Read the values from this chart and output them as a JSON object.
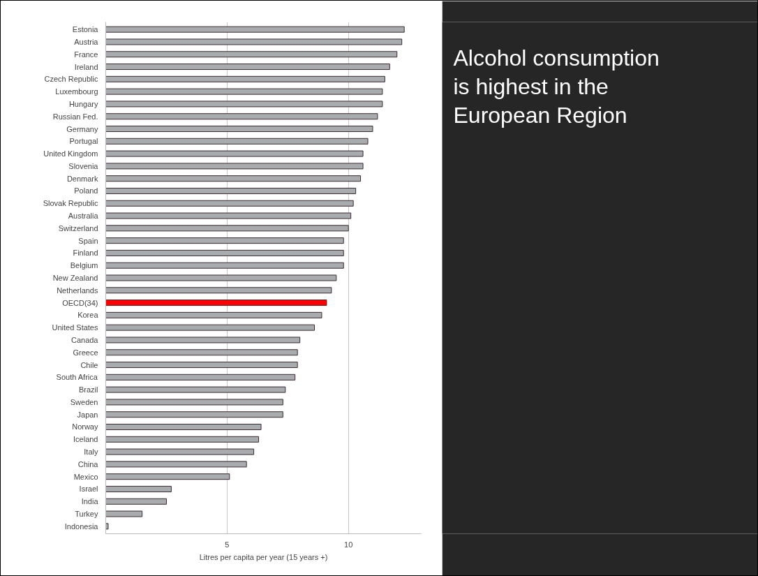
{
  "chart_data": {
    "type": "bar",
    "orientation": "horizontal",
    "title": "Alcohol consumption is highest in the European Region",
    "xlabel": "Litres per capita per year (15 years +)",
    "categories": [
      "Estonia",
      "Austria",
      "France",
      "Ireland",
      "Czech Republic",
      "Luxembourg",
      "Hungary",
      "Russian Fed.",
      "Germany",
      "Portugal",
      "United Kingdom",
      "Slovenia",
      "Denmark",
      "Poland",
      "Slovak Republic",
      "Australia",
      "Switzerland",
      "Spain",
      "Finland",
      "Belgium",
      "New Zealand",
      "Netherlands",
      "OECD(34)",
      "Korea",
      "United States",
      "Canada",
      "Greece",
      "Chile",
      "South Africa",
      "Brazil",
      "Sweden",
      "Japan",
      "Norway",
      "Iceland",
      "Italy",
      "China",
      "Mexico",
      "Israel",
      "India",
      "Turkey",
      "Indonesia"
    ],
    "values": [
      12.3,
      12.2,
      12.0,
      11.7,
      11.5,
      11.4,
      11.4,
      11.2,
      11.0,
      10.8,
      10.6,
      10.6,
      10.5,
      10.3,
      10.2,
      10.1,
      10.0,
      9.8,
      9.8,
      9.8,
      9.5,
      9.3,
      9.1,
      8.9,
      8.6,
      8.0,
      7.9,
      7.9,
      7.8,
      7.4,
      7.3,
      7.3,
      6.4,
      6.3,
      6.1,
      5.8,
      5.1,
      2.7,
      2.5,
      1.5,
      0.1
    ],
    "colors": [
      "#a9acae",
      "#a9acae",
      "#a9acae",
      "#a9acae",
      "#a9acae",
      "#a9acae",
      "#a9acae",
      "#a9acae",
      "#a9acae",
      "#a9acae",
      "#a9acae",
      "#a9acae",
      "#a9acae",
      "#a9acae",
      "#a9acae",
      "#a9acae",
      "#a9acae",
      "#a9acae",
      "#a9acae",
      "#a9acae",
      "#a9acae",
      "#a9acae",
      "#ff0000",
      "#a9acae",
      "#a9acae",
      "#a9acae",
      "#a9acae",
      "#a9acae",
      "#a9acae",
      "#a9acae",
      "#a9acae",
      "#a9acae",
      "#a9acae",
      "#a9acae",
      "#a9acae",
      "#a9acae",
      "#a9acae",
      "#a9acae",
      "#a9acae",
      "#a9acae",
      "#a9acae"
    ],
    "xlim": [
      0,
      13
    ],
    "xticks": [
      5,
      10
    ],
    "grid": "x"
  }
}
